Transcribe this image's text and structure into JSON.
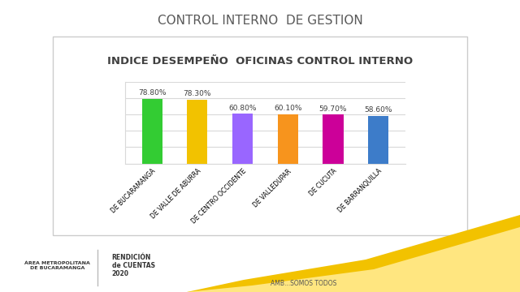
{
  "header": "CONTROL INTERNO  DE GESTION",
  "chart_data": {
    "type": "bar",
    "title": "INDICE DESEMPEÑO  OFICINAS CONTROL INTERNO",
    "categories": [
      "DE BUCARAMANGA",
      "DE VALLE DE ABURRA",
      "DE CENTRO OCCIDENTE",
      "DE VALLEDUPAR",
      "DE CUCUTA",
      "DE BARRANQUILLA"
    ],
    "values": [
      78.8,
      78.3,
      60.8,
      60.1,
      59.7,
      58.6
    ],
    "value_labels": [
      "78.80%",
      "78.30%",
      "60.80%",
      "60.10%",
      "59.70%",
      "58.60%"
    ],
    "colors": [
      "#33cc33",
      "#f2c200",
      "#9966ff",
      "#f7941d",
      "#cc0099",
      "#3d7cc9"
    ],
    "ylim": [
      0,
      100
    ],
    "yticks": [
      0,
      20,
      40,
      60,
      80,
      100
    ],
    "grid": true,
    "data_labels": true,
    "tick_labels": "x"
  },
  "footer": {
    "logo": [
      "ÁREA METROPOLITANA",
      "DE BUCARAMANGA"
    ],
    "report": [
      "RENDICIÓN",
      "de CUENTAS",
      "2020"
    ],
    "slogan": "AMB...SOMOS TODOS"
  }
}
